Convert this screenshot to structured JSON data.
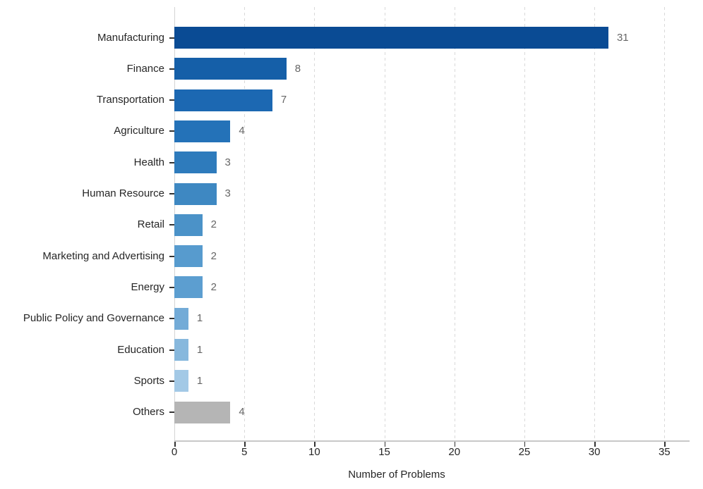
{
  "chart_data": {
    "type": "bar",
    "orientation": "horizontal",
    "title": "",
    "xlabel": "Number of Problems",
    "ylabel": "",
    "categories": [
      "Manufacturing",
      "Finance",
      "Transportation",
      "Agriculture",
      "Health",
      "Human Resource",
      "Retail",
      "Marketing and Advertising",
      "Energy",
      "Public Policy and Governance",
      "Education",
      "Sports",
      "Others"
    ],
    "values": [
      31,
      8,
      7,
      4,
      3,
      3,
      2,
      2,
      2,
      1,
      1,
      1,
      4
    ],
    "value_labels": [
      "31",
      "8",
      "7",
      "4",
      "3",
      "3",
      "2",
      "2",
      "2",
      "1",
      "1",
      "1",
      "4"
    ],
    "bar_colors": [
      "#0a4b94",
      "#155fa8",
      "#1c68b2",
      "#2472b8",
      "#2e7bbc",
      "#3e88c2",
      "#4b92c8",
      "#579bce",
      "#5c9ed0",
      "#73abd7",
      "#87b8dd",
      "#a3c9e6",
      "#b5b5b5"
    ],
    "xticks": [
      0,
      5,
      10,
      15,
      20,
      25,
      30,
      35
    ],
    "xtick_labels": [
      "0",
      "5",
      "10",
      "15",
      "20",
      "25",
      "30",
      "35"
    ],
    "xlim": [
      0,
      36.8
    ],
    "grid": "vertical-dashed",
    "grid_color": "#d9d9d9",
    "zero_line_color": "#d4d4d4",
    "axis_line_color": "#c8c8c8",
    "tick_color": "#333333",
    "category_label_color": "#262626",
    "value_label_color": "#666666",
    "legend": "none"
  }
}
